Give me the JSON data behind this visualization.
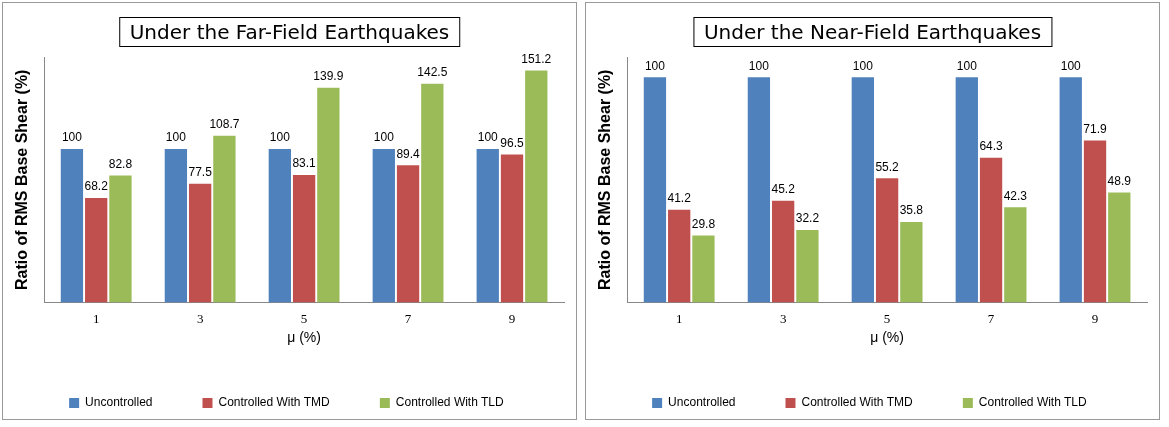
{
  "chart_data": [
    {
      "type": "bar",
      "title": "Under the Far-Field Earthquakes",
      "xlabel": "μ (%)",
      "ylabel": "Ratio of RMS Base Shear (%)",
      "categories": [
        "1",
        "3",
        "5",
        "7",
        "9"
      ],
      "series": [
        {
          "name": "Uncontrolled",
          "color": "#4f81bd",
          "values": [
            100,
            100,
            100,
            100,
            100
          ]
        },
        {
          "name": "Controlled With TMD",
          "color": "#c0504d",
          "values": [
            68.2,
            77.5,
            83.1,
            89.4,
            96.5
          ]
        },
        {
          "name": "Controlled With TLD",
          "color": "#9bbb59",
          "values": [
            82.8,
            108.7,
            139.9,
            142.5,
            151.2
          ]
        }
      ],
      "ylim": [
        0,
        160
      ],
      "tick_labels": "x",
      "data_labels": true,
      "legend": "bottom",
      "grid": false
    },
    {
      "type": "bar",
      "title": "Under the Near-Field Earthquakes",
      "xlabel": "μ (%)",
      "ylabel": "Ratio of RMS Base Shear (%)",
      "categories": [
        "1",
        "3",
        "5",
        "7",
        "9"
      ],
      "series": [
        {
          "name": "Uncontrolled",
          "color": "#4f81bd",
          "values": [
            100,
            100,
            100,
            100,
            100
          ]
        },
        {
          "name": "Controlled With TMD",
          "color": "#c0504d",
          "values": [
            41.2,
            45.2,
            55.2,
            64.3,
            71.9
          ]
        },
        {
          "name": "Controlled With TLD",
          "color": "#9bbb59",
          "values": [
            29.8,
            32.2,
            35.8,
            42.3,
            48.9
          ]
        }
      ],
      "ylim": [
        0,
        109
      ],
      "tick_labels": "x",
      "data_labels": true,
      "legend": "bottom",
      "grid": false
    }
  ]
}
